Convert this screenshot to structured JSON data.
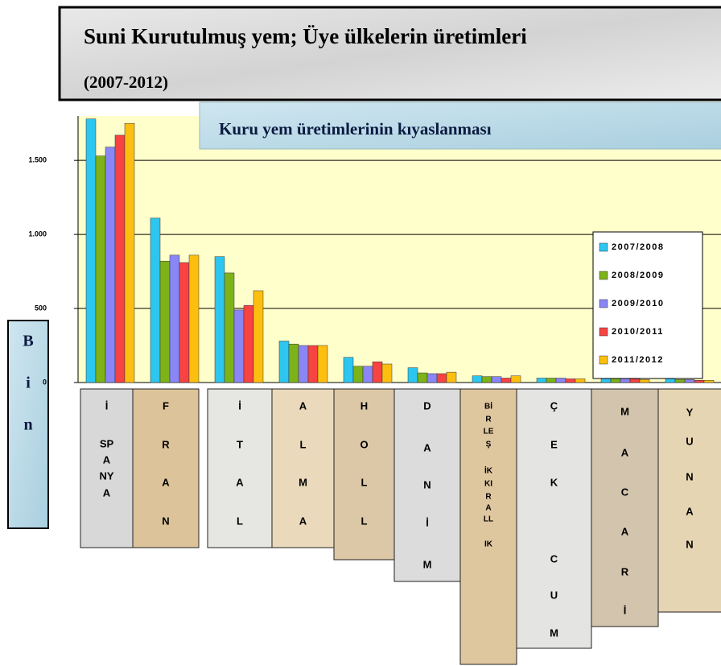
{
  "chart_data": {
    "type": "bar",
    "title": "Suni Kurutulmuş yem; Üye ülkelerin üretimleri",
    "subtitle": "(2007-2012)",
    "chart_title": "Kuru yem üretimlerinin kıyaslanması",
    "y_label": [
      "B",
      "i",
      "n"
    ],
    "categories": [
      [
        "İ",
        "SP",
        "A",
        "NY",
        "A"
      ],
      [
        "F",
        "R",
        "A",
        "N"
      ],
      [
        "İ",
        "T",
        "A",
        "L"
      ],
      [
        "A",
        "L",
        "M",
        "A"
      ],
      [
        "H",
        "O",
        "L",
        "L"
      ],
      [
        "D",
        "A",
        "N",
        "İ",
        "M"
      ],
      [
        "Bİ",
        "R",
        "LE",
        "Ş",
        "İK",
        "KI",
        "R",
        "A",
        "LL",
        "IK"
      ],
      [
        "Ç",
        "E",
        "K",
        "C",
        "U",
        "M"
      ],
      [
        "M",
        "A",
        "C",
        "A",
        "R",
        "İ"
      ],
      [
        "Y",
        "U",
        "N",
        "A",
        "N"
      ]
    ],
    "series": [
      {
        "name": "2007/2008",
        "color": "#2cc6f0",
        "values": [
          1780,
          1110,
          850,
          280,
          170,
          100,
          45,
          30,
          35,
          30
        ]
      },
      {
        "name": "2008/2009",
        "color": "#7db319",
        "values": [
          1530,
          820,
          740,
          260,
          110,
          65,
          40,
          30,
          40,
          20
        ]
      },
      {
        "name": "2009/2010",
        "color": "#8a86f5",
        "values": [
          1590,
          860,
          490,
          250,
          110,
          60,
          40,
          30,
          30,
          20
        ]
      },
      {
        "name": "2010/2011",
        "color": "#f84343",
        "values": [
          1670,
          810,
          520,
          250,
          140,
          60,
          30,
          25,
          25,
          15
        ]
      },
      {
        "name": "2011/2012",
        "color": "#fcbf10",
        "values": [
          1750,
          860,
          620,
          250,
          125,
          70,
          45,
          25,
          20,
          15
        ]
      }
    ],
    "ylim": [
      0,
      1800
    ],
    "yticks": [
      0,
      500,
      {
        "value": 1000,
        "label": "1.000"
      },
      {
        "value": 1500,
        "label": "1.500"
      }
    ],
    "grid": true,
    "legend": "right"
  }
}
